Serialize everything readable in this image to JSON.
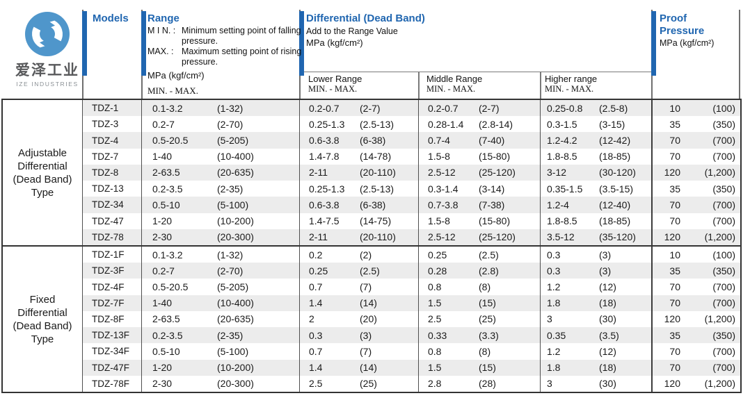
{
  "logo": {
    "brand_cn": "爱泽工业",
    "brand_en": "IZE INDUSTRIES"
  },
  "colors": {
    "accent": "#2066b0",
    "logo_blue": "#4f96cb",
    "row_alt": "#ececec"
  },
  "header": {
    "models_label": "Models",
    "range": {
      "title": "Range",
      "min_label": "M I N. :",
      "min_desc": "Minimum setting point of falling pressure.",
      "max_label": "MAX. :",
      "max_desc": "Maximum setting point of rising pressure.",
      "unit": "MPa (kgf/cm²)",
      "minmax_label": "MIN. - MAX."
    },
    "differential": {
      "title": "Differential  (Dead Band)",
      "subtitle": "Add to the Range Value",
      "unit": "MPa (kgf/cm²)",
      "sub_columns": [
        {
          "label": "Lower Range",
          "minmax": "MIN. - MAX."
        },
        {
          "label": "Middle Range",
          "minmax": "MIN. - MAX."
        },
        {
          "label": "Higher range",
          "minmax": "MIN. - MAX."
        }
      ]
    },
    "proof": {
      "title_line1": "Proof",
      "title_line2": "Pressure",
      "unit": "MPa (kgf/cm²)"
    }
  },
  "sections": [
    {
      "label": "Adjustable\nDifferential\n(Dead Band)\nType",
      "rows": [
        {
          "model": "TDZ-1",
          "range": [
            "0.1-3.2",
            "(1-32)"
          ],
          "lower": [
            "0.2-0.7",
            "(2-7)"
          ],
          "middle": [
            "0.2-0.7",
            "(2-7)"
          ],
          "higher": [
            "0.25-0.8",
            "(2.5-8)"
          ],
          "proof": [
            "10",
            "(100)"
          ]
        },
        {
          "model": "TDZ-3",
          "range": [
            "0.2-7",
            "(2-70)"
          ],
          "lower": [
            "0.25-1.3",
            "(2.5-13)"
          ],
          "middle": [
            "0.28-1.4",
            "(2.8-14)"
          ],
          "higher": [
            "0.3-1.5",
            "(3-15)"
          ],
          "proof": [
            "35",
            "(350)"
          ]
        },
        {
          "model": "TDZ-4",
          "range": [
            "0.5-20.5",
            "(5-205)"
          ],
          "lower": [
            "0.6-3.8",
            "(6-38)"
          ],
          "middle": [
            "0.7-4",
            "(7-40)"
          ],
          "higher": [
            "1.2-4.2",
            "(12-42)"
          ],
          "proof": [
            "70",
            "(700)"
          ]
        },
        {
          "model": "TDZ-7",
          "range": [
            "1-40",
            "(10-400)"
          ],
          "lower": [
            "1.4-7.8",
            "(14-78)"
          ],
          "middle": [
            "1.5-8",
            "(15-80)"
          ],
          "higher": [
            "1.8-8.5",
            "(18-85)"
          ],
          "proof": [
            "70",
            "(700)"
          ]
        },
        {
          "model": "TDZ-8",
          "range": [
            "2-63.5",
            "(20-635)"
          ],
          "lower": [
            "2-11",
            "(20-110)"
          ],
          "middle": [
            "2.5-12",
            "(25-120)"
          ],
          "higher": [
            "3-12",
            "(30-120)"
          ],
          "proof": [
            "120",
            "(1,200)"
          ]
        },
        {
          "model": "TDZ-13",
          "range": [
            "0.2-3.5",
            "(2-35)"
          ],
          "lower": [
            "0.25-1.3",
            "(2.5-13)"
          ],
          "middle": [
            "0.3-1.4",
            "(3-14)"
          ],
          "higher": [
            "0.35-1.5",
            "(3.5-15)"
          ],
          "proof": [
            "35",
            "(350)"
          ]
        },
        {
          "model": "TDZ-34",
          "range": [
            "0.5-10",
            "(5-100)"
          ],
          "lower": [
            "0.6-3.8",
            "(6-38)"
          ],
          "middle": [
            "0.7-3.8",
            "(7-38)"
          ],
          "higher": [
            "1.2-4",
            "(12-40)"
          ],
          "proof": [
            "70",
            "(700)"
          ]
        },
        {
          "model": "TDZ-47",
          "range": [
            "1-20",
            "(10-200)"
          ],
          "lower": [
            "1.4-7.5",
            "(14-75)"
          ],
          "middle": [
            "1.5-8",
            "(15-80)"
          ],
          "higher": [
            "1.8-8.5",
            "(18-85)"
          ],
          "proof": [
            "70",
            "(700)"
          ]
        },
        {
          "model": "TDZ-78",
          "range": [
            "2-30",
            "(20-300)"
          ],
          "lower": [
            "2-11",
            "(20-110)"
          ],
          "middle": [
            "2.5-12",
            "(25-120)"
          ],
          "higher": [
            "3.5-12",
            "(35-120)"
          ],
          "proof": [
            "120",
            "(1,200)"
          ]
        }
      ]
    },
    {
      "label": "Fixed\nDifferential\n(Dead Band)\nType",
      "rows": [
        {
          "model": "TDZ-1F",
          "range": [
            "0.1-3.2",
            "(1-32)"
          ],
          "lower": [
            "0.2",
            "(2)"
          ],
          "middle": [
            "0.25",
            "(2.5)"
          ],
          "higher": [
            "0.3",
            "(3)"
          ],
          "proof": [
            "10",
            "(100)"
          ]
        },
        {
          "model": "TDZ-3F",
          "range": [
            "0.2-7",
            "(2-70)"
          ],
          "lower": [
            "0.25",
            "(2.5)"
          ],
          "middle": [
            "0.28",
            "(2.8)"
          ],
          "higher": [
            "0.3",
            "(3)"
          ],
          "proof": [
            "35",
            "(350)"
          ]
        },
        {
          "model": "TDZ-4F",
          "range": [
            "0.5-20.5",
            "(5-205)"
          ],
          "lower": [
            "0.7",
            "(7)"
          ],
          "middle": [
            "0.8",
            "(8)"
          ],
          "higher": [
            "1.2",
            "(12)"
          ],
          "proof": [
            "70",
            "(700)"
          ]
        },
        {
          "model": "TDZ-7F",
          "range": [
            "1-40",
            "(10-400)"
          ],
          "lower": [
            "1.4",
            "(14)"
          ],
          "middle": [
            "1.5",
            "(15)"
          ],
          "higher": [
            "1.8",
            "(18)"
          ],
          "proof": [
            "70",
            "(700)"
          ]
        },
        {
          "model": "TDZ-8F",
          "range": [
            "2-63.5",
            "(20-635)"
          ],
          "lower": [
            "2",
            "(20)"
          ],
          "middle": [
            "2.5",
            "(25)"
          ],
          "higher": [
            "3",
            "(30)"
          ],
          "proof": [
            "120",
            "(1,200)"
          ]
        },
        {
          "model": "TDZ-13F",
          "range": [
            "0.2-3.5",
            "(2-35)"
          ],
          "lower": [
            "0.3",
            "(3)"
          ],
          "middle": [
            "0.33",
            "(3.3)"
          ],
          "higher": [
            "0.35",
            "(3.5)"
          ],
          "proof": [
            "35",
            "(350)"
          ]
        },
        {
          "model": "TDZ-34F",
          "range": [
            "0.5-10",
            "(5-100)"
          ],
          "lower": [
            "0.7",
            "(7)"
          ],
          "middle": [
            "0.8",
            "(8)"
          ],
          "higher": [
            "1.2",
            "(12)"
          ],
          "proof": [
            "70",
            "(700)"
          ]
        },
        {
          "model": "TDZ-47F",
          "range": [
            "1-20",
            "(10-200)"
          ],
          "lower": [
            "1.4",
            "(14)"
          ],
          "middle": [
            "1.5",
            "(15)"
          ],
          "higher": [
            "1.8",
            "(18)"
          ],
          "proof": [
            "70",
            "(700)"
          ]
        },
        {
          "model": "TDZ-78F",
          "range": [
            "2-30",
            "(20-300)"
          ],
          "lower": [
            "2.5",
            "(25)"
          ],
          "middle": [
            "2.8",
            "(28)"
          ],
          "higher": [
            "3",
            "(30)"
          ],
          "proof": [
            "120",
            "(1,200)"
          ]
        }
      ]
    }
  ]
}
